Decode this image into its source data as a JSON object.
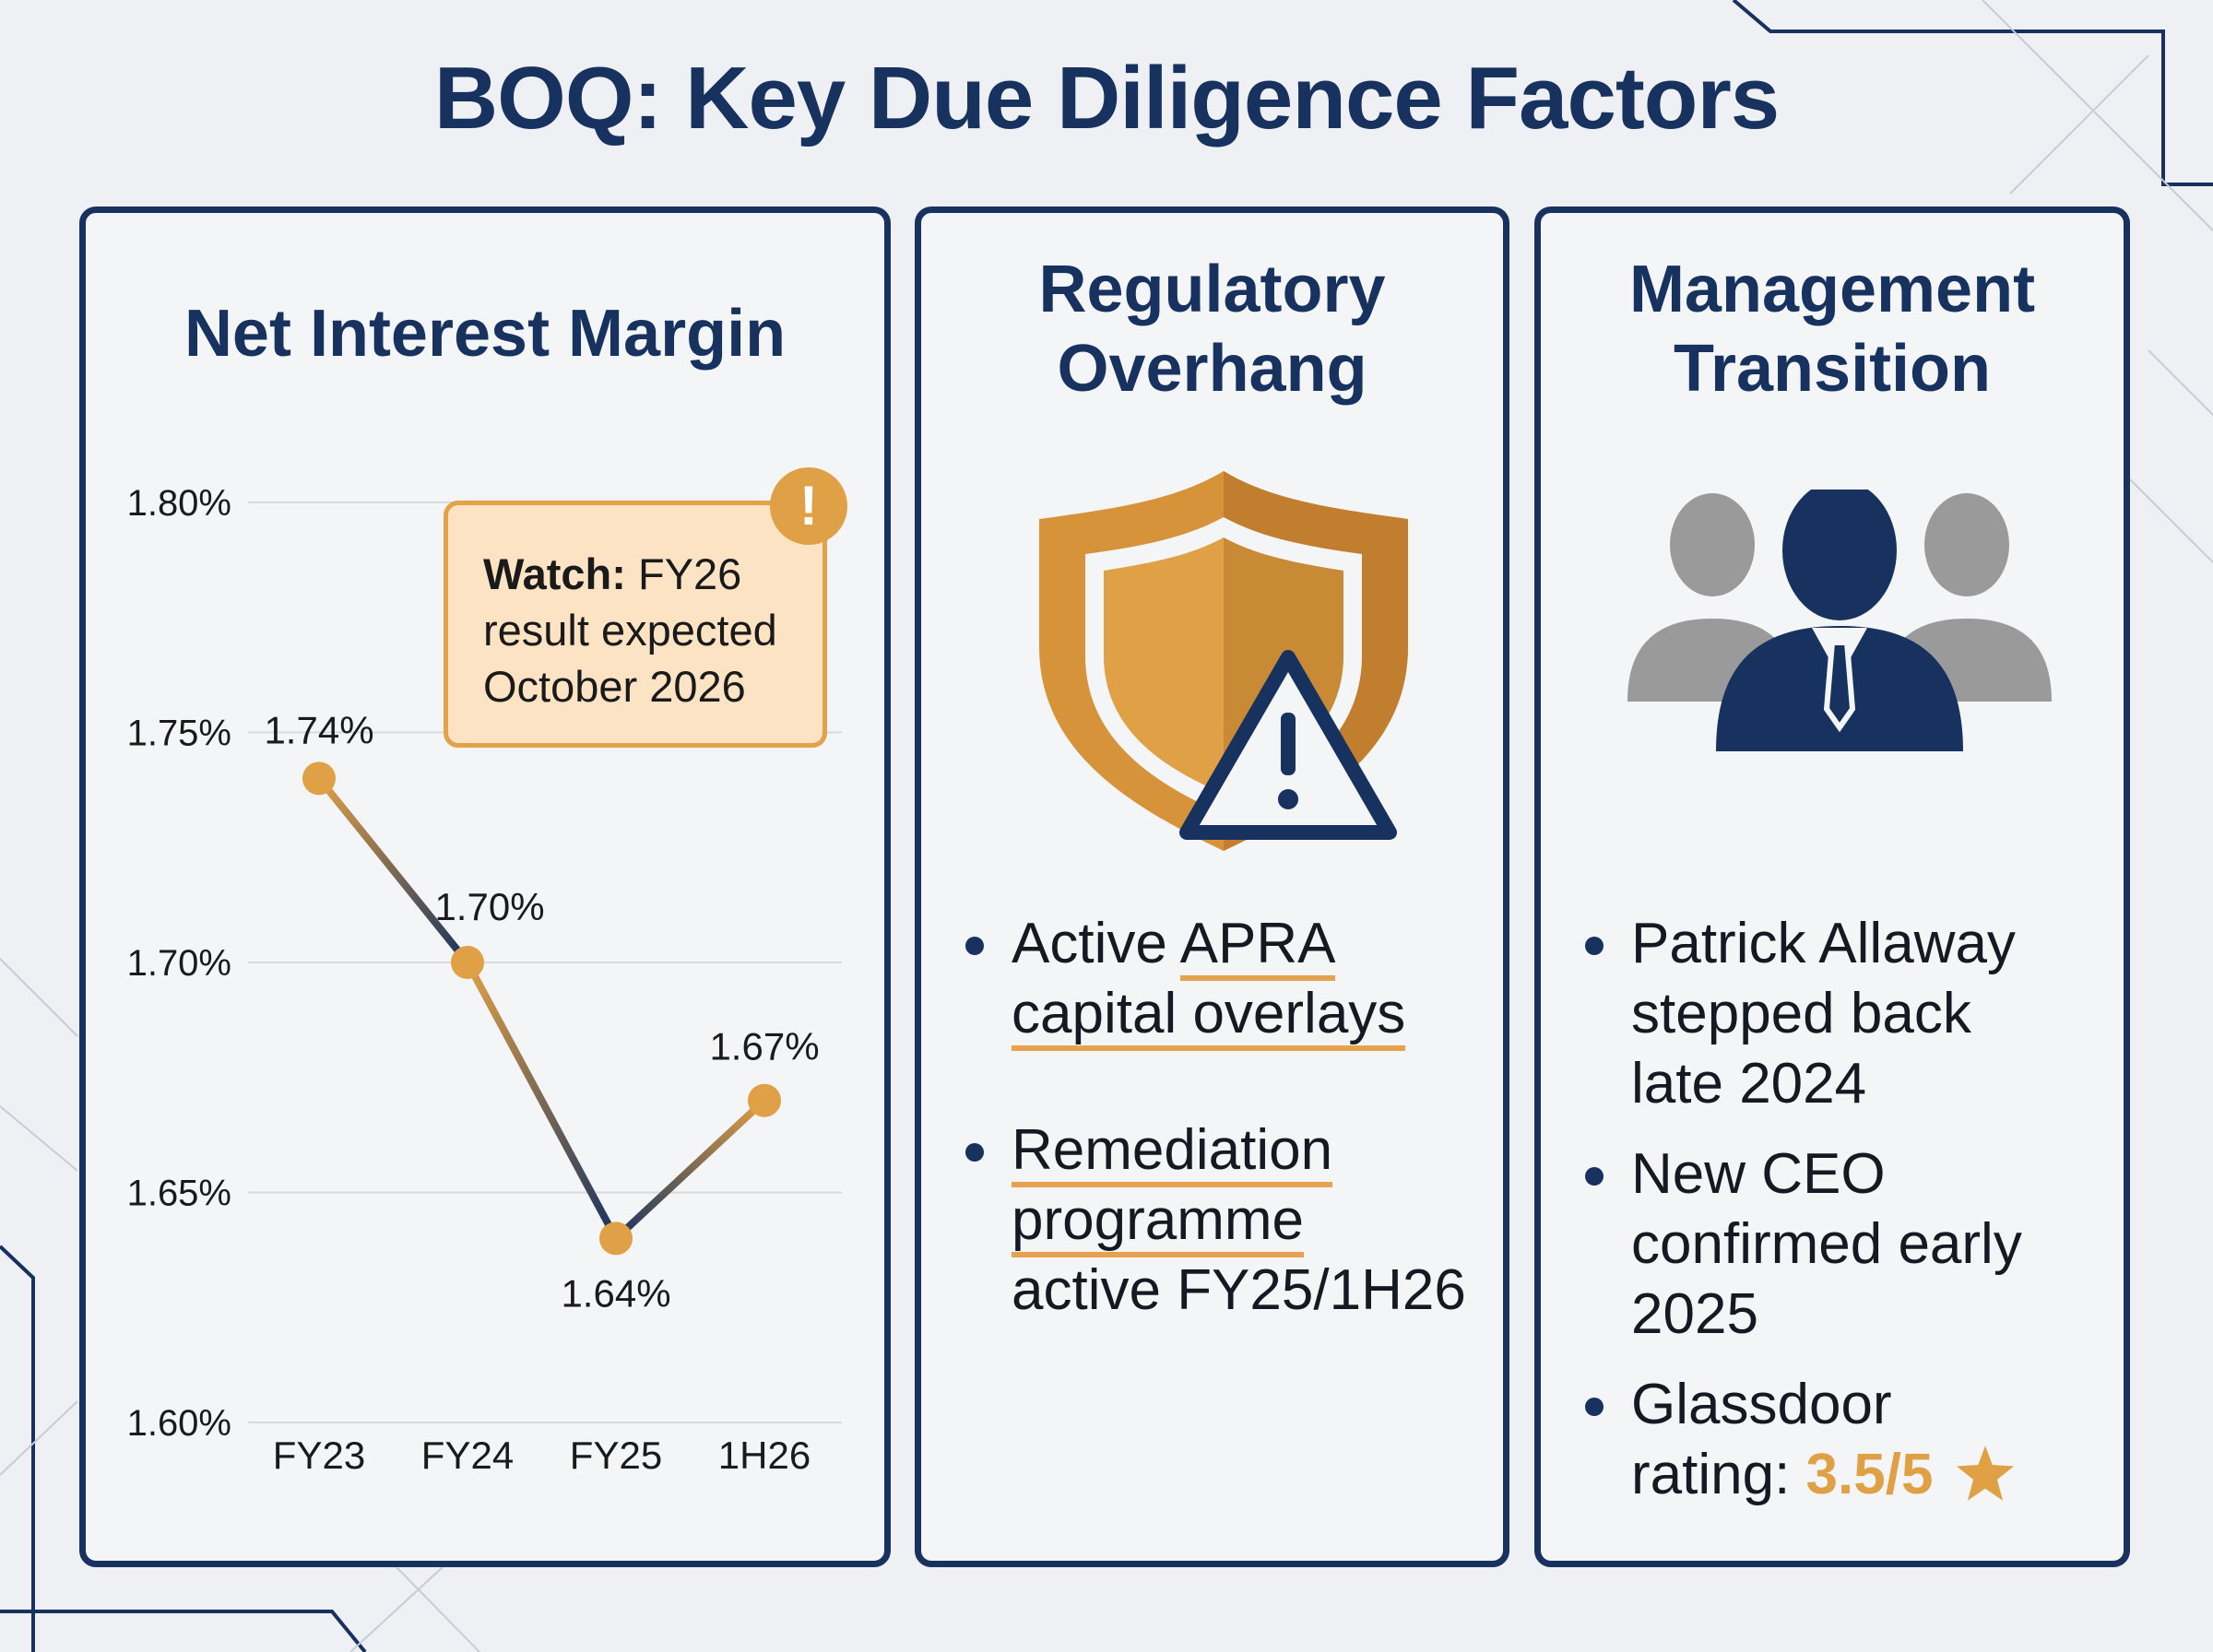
{
  "header": {
    "title": "BOQ: Key Due Diligence Factors"
  },
  "colors": {
    "navy": "#17325f",
    "gold": "#e0a046",
    "grey_figure": "#9a9a9a",
    "callout_fill": "#fbe3c4"
  },
  "nim_panel": {
    "title": "Net Interest Margin",
    "callout": {
      "label": "Watch:",
      "text_line1": "FY26",
      "text_line2": "result expected",
      "text_line3": "October 2026",
      "badge": "!",
      "badge_icon": "exclamation-icon"
    }
  },
  "chart_data": {
    "type": "line",
    "title": "Net Interest Margin",
    "categories": [
      "FY23",
      "FY24",
      "FY25",
      "1H26"
    ],
    "values": [
      1.74,
      1.7,
      1.64,
      1.67
    ],
    "data_labels": [
      "1.74%",
      "1.70%",
      "1.64%",
      "1.67%"
    ],
    "yticks": [
      1.6,
      1.65,
      1.7,
      1.75,
      1.8
    ],
    "ytick_labels": [
      "1.60%",
      "1.65%",
      "1.70%",
      "1.75%",
      "1.80%"
    ],
    "ylim": [
      1.6,
      1.8
    ],
    "xlabel": "",
    "ylabel": "",
    "grid": true,
    "legend": "none",
    "line_colors": [
      "#e0a046",
      "#17325f"
    ],
    "marker_color": "#e0a046"
  },
  "regulatory_panel": {
    "title_line1": "Regulatory",
    "title_line2": "Overhang",
    "icon": "shield-warning-icon",
    "bullets": [
      {
        "plain": "Active ",
        "underlined": "APRA",
        "line2_underlined": "capital overlays",
        "line3": ""
      },
      {
        "plain": "",
        "underlined": "Remediation",
        "line2_underlined": "programme",
        "line3": "active FY25/1H26"
      }
    ]
  },
  "management_panel": {
    "title_line1": "Management",
    "title_line2": "Transition",
    "icon": "team-people-icon",
    "bullets": [
      {
        "line1": "Patrick Allaway",
        "line2": "stepped back",
        "line3": "late 2024"
      },
      {
        "line1": "New CEO",
        "line2": "confirmed early",
        "line3": "2025"
      }
    ],
    "glassdoor": {
      "line1": "Glassdoor",
      "line2_prefix": "rating: ",
      "rating": "3.5/5",
      "rating_icon": "star-icon"
    }
  }
}
